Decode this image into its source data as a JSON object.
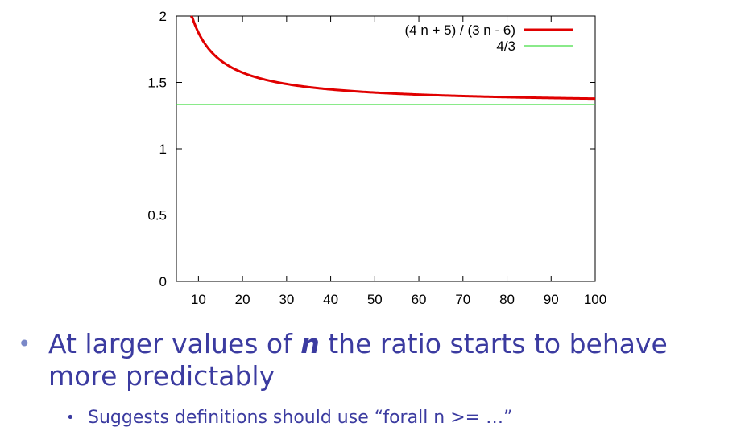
{
  "chart_data": {
    "type": "line",
    "title": "",
    "xlabel": "",
    "ylabel": "",
    "xlim": [
      5,
      100
    ],
    "ylim": [
      0,
      2
    ],
    "x_ticks": [
      10,
      20,
      30,
      40,
      50,
      60,
      70,
      80,
      90,
      100
    ],
    "y_ticks": [
      {
        "value": 0,
        "label": "0"
      },
      {
        "value": 0.5,
        "label": "0.5"
      },
      {
        "value": 1,
        "label": "1"
      },
      {
        "value": 1.5,
        "label": "1.5"
      },
      {
        "value": 2,
        "label": "2"
      }
    ],
    "grid": false,
    "legend": "top-right",
    "series": [
      {
        "name": "(4 n + 5) / (3 n - 6)",
        "color": "#e00000",
        "function": "(4*n+5)/(3*n-6)",
        "x_start": 8,
        "x_end": 100
      },
      {
        "name": "4/3",
        "color": "#44dd44",
        "function": "4/3",
        "x_start": 5,
        "x_end": 100
      }
    ]
  },
  "bullets": {
    "first_pre": "At larger values of ",
    "first_var": "n",
    "first_post": " the ratio starts to behave more predictably",
    "second": "Suggests definitions should use “forall n >= …”"
  }
}
